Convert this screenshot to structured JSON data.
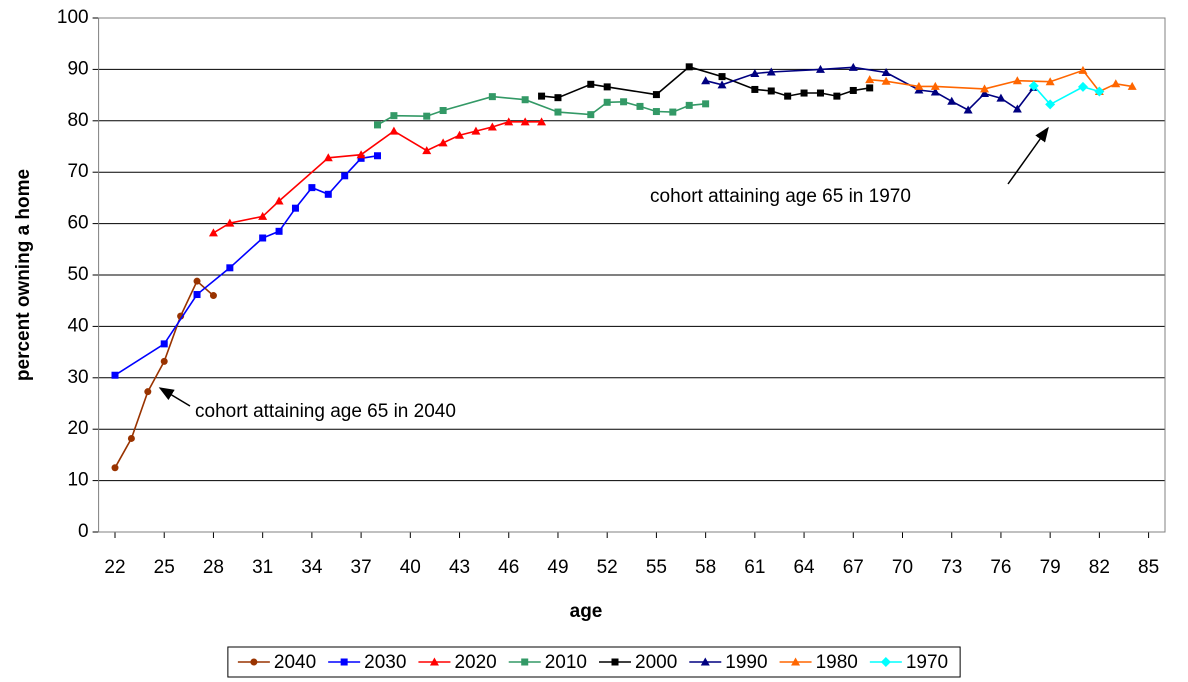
{
  "chart_data": {
    "type": "line",
    "xlabel": "age",
    "ylabel": "percent owning a home",
    "xlim": [
      21,
      86
    ],
    "xticks": [
      22,
      25,
      28,
      31,
      34,
      37,
      40,
      43,
      46,
      49,
      52,
      55,
      58,
      61,
      64,
      67,
      70,
      73,
      76,
      79,
      82,
      85
    ],
    "ylim": [
      0,
      100
    ],
    "yticks": [
      0,
      10,
      20,
      30,
      40,
      50,
      60,
      70,
      80,
      90,
      100
    ],
    "grid": true,
    "legend": "bottom",
    "annotations": [
      "cohort attaining age 65 in 2040",
      "cohort attaining age 65 in 1970"
    ],
    "series": [
      {
        "name": "2040",
        "color": "#993300",
        "marker": "circle",
        "x": [
          22,
          23,
          24,
          25,
          26,
          27,
          28
        ],
        "values": [
          12.5,
          18.2,
          27.3,
          33.2,
          42,
          48.8,
          46
        ]
      },
      {
        "name": "2030",
        "color": "#0000ff",
        "marker": "square",
        "x": [
          22,
          25,
          27,
          29,
          31,
          32,
          33,
          34,
          35,
          36,
          37,
          38
        ],
        "values": [
          30.5,
          36.6,
          46.2,
          51.4,
          57.2,
          58.5,
          63,
          67,
          65.7,
          69.3,
          72.7,
          73.2
        ]
      },
      {
        "name": "2020",
        "color": "#ff0000",
        "marker": "triangle",
        "x": [
          28,
          29,
          31,
          32,
          35,
          37,
          39,
          41,
          42,
          43,
          44,
          45,
          46,
          47,
          48
        ],
        "values": [
          58.2,
          60.1,
          61.4,
          64.4,
          72.8,
          73.4,
          78,
          74.2,
          75.7,
          77.2,
          78,
          78.8,
          79.8,
          79.8,
          79.8
        ]
      },
      {
        "name": "2010",
        "color": "#339966",
        "marker": "square",
        "x": [
          38,
          39,
          41,
          42,
          45,
          47,
          49,
          51,
          52,
          53,
          54,
          55,
          56,
          57,
          58
        ],
        "values": [
          79.2,
          81,
          80.9,
          82,
          84.7,
          84.1,
          81.7,
          81.2,
          83.6,
          83.7,
          82.8,
          81.8,
          81.7,
          83,
          83.3
        ]
      },
      {
        "name": "2000",
        "color": "#000000",
        "marker": "square",
        "x": [
          48,
          49,
          51,
          52,
          55,
          57,
          59,
          61,
          62,
          63,
          64,
          65,
          66,
          67,
          68
        ],
        "values": [
          84.8,
          84.5,
          87.1,
          86.6,
          85.1,
          90.5,
          88.6,
          86.1,
          85.8,
          84.8,
          85.4,
          85.4,
          84.8,
          85.9,
          86.4
        ]
      },
      {
        "name": "1990",
        "color": "#000080",
        "marker": "triangle",
        "x": [
          58,
          59,
          61,
          62,
          65,
          67,
          69,
          71,
          72,
          73,
          74,
          75,
          76,
          77,
          78
        ],
        "values": [
          87.8,
          87,
          89.2,
          89.5,
          90,
          90.4,
          89.4,
          86,
          85.6,
          83.8,
          82.1,
          85.3,
          84.4,
          82.3,
          86.5
        ]
      },
      {
        "name": "1980",
        "color": "#ff6600",
        "marker": "triangle",
        "x": [
          68,
          69,
          71,
          72,
          75,
          77,
          79,
          81,
          82,
          83,
          84
        ],
        "values": [
          88,
          87.7,
          86.7,
          86.7,
          86.2,
          87.8,
          87.6,
          89.8,
          85.7,
          87.2,
          86.7
        ]
      },
      {
        "name": "1970",
        "color": "#00ffff",
        "marker": "diamond",
        "x": [
          78,
          79,
          81,
          82
        ],
        "values": [
          86.8,
          83.2,
          86.6,
          85.7
        ]
      }
    ]
  }
}
